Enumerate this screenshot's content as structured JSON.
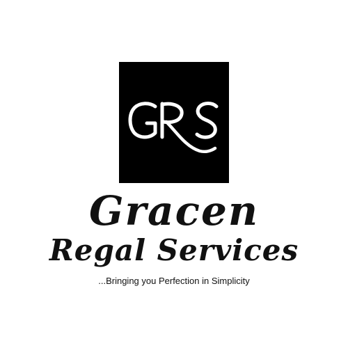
{
  "logo": {
    "monogram": "GRS",
    "name_line1": "Gracen",
    "name_line2": "Regal Services",
    "tagline": "...Bringing you Perfection in Simplicity"
  },
  "colors": {
    "background": "#ffffff",
    "emblem": "#000000",
    "monogram": "#ffffff",
    "text": "#111111"
  }
}
